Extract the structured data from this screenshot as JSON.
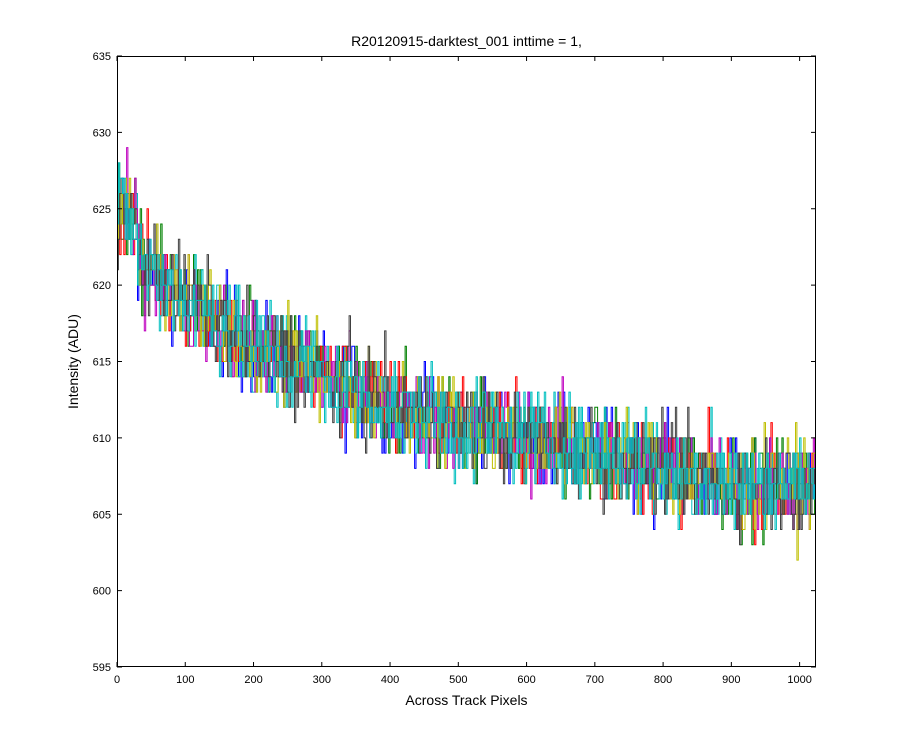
{
  "chart_data": {
    "type": "line",
    "title": "R20120915-darktest_001 inttime = 1,",
    "xlabel": "Across Track Pixels",
    "ylabel": "Intensity (ADU)",
    "xlim": [
      0,
      1024
    ],
    "ylim": [
      595,
      635
    ],
    "xticks": [
      0,
      100,
      200,
      300,
      400,
      500,
      600,
      700,
      800,
      900,
      1000
    ],
    "yticks": [
      595,
      600,
      605,
      610,
      615,
      620,
      625,
      630,
      635
    ],
    "xtick_labels": [
      "0",
      "100",
      "200",
      "300",
      "400",
      "500",
      "600",
      "700",
      "800",
      "900",
      "1000"
    ],
    "ytick_labels": [
      "595",
      "600",
      "605",
      "610",
      "615",
      "620",
      "625",
      "630",
      "635"
    ],
    "grid": false,
    "legend": "none",
    "series_count": 8,
    "series_colors": [
      "#0000ff",
      "#008000",
      "#ff0000",
      "#00bfbf",
      "#bf00bf",
      "#bfbf00",
      "#404040",
      "#00bfbf"
    ],
    "trend": {
      "x": [
        0,
        50,
        100,
        200,
        300,
        400,
        500,
        600,
        700,
        800,
        900,
        1000,
        1024
      ],
      "y": [
        623,
        621,
        619,
        616,
        614,
        612,
        611,
        610,
        609,
        608,
        607,
        607,
        607
      ]
    },
    "noise_spread_adu": 7,
    "noise_spread_note": "spread of the overlapping series around the trend, estimated"
  }
}
